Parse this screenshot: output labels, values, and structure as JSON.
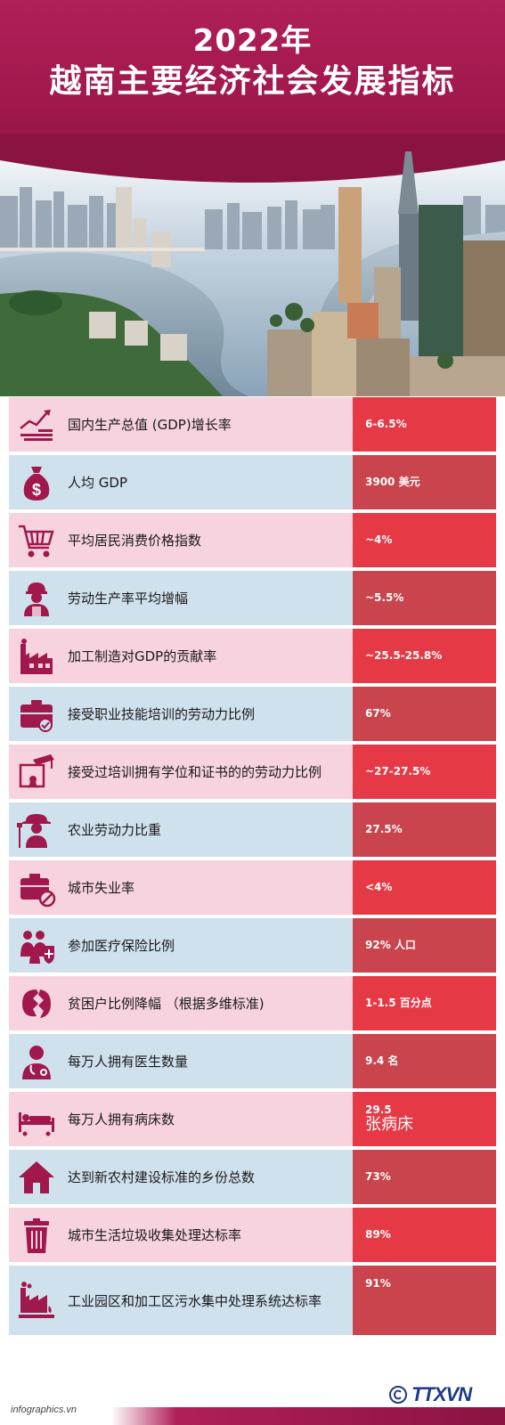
{
  "header": {
    "year_title": "2022年",
    "subtitle": "越南主要经济社会发展指标"
  },
  "rows": [
    {
      "label": "国内生产总值 (GDP)增长率",
      "value": "6-6.5%",
      "value_sub": "",
      "icon": "growth-chart-icon"
    },
    {
      "label": "人均 GDP",
      "value": "3900 美元",
      "value_sub": "",
      "icon": "money-bag-icon"
    },
    {
      "label": "平均居民消费价格指数",
      "value": "~4%",
      "value_sub": "",
      "icon": "shopping-cart-icon"
    },
    {
      "label": "劳动生产率平均增幅",
      "value": "~5.5%",
      "value_sub": "",
      "icon": "worker-icon"
    },
    {
      "label": "加工制造对GDP的贡献率",
      "value": "~25.5-25.8%",
      "value_sub": "",
      "icon": "factory-icon"
    },
    {
      "label": "接受职业技能培训的劳动力比例",
      "value": "67%",
      "value_sub": "",
      "icon": "toolbox-icon"
    },
    {
      "label": "接受过培训拥有学位和证书的的劳动力比例",
      "value": "~27-27.5%",
      "value_sub": "",
      "icon": "certificate-icon"
    },
    {
      "label": "农业劳动力比重",
      "value": "27.5%",
      "value_sub": "",
      "icon": "farmer-icon"
    },
    {
      "label": "城市失业率",
      "value": "<4%",
      "value_sub": "",
      "icon": "unemployment-icon"
    },
    {
      "label": "参加医疗保险比例",
      "value": "92% 人口",
      "value_sub": "",
      "icon": "health-insurance-icon"
    },
    {
      "label": "贫困户比例降幅 （根据多维标准)",
      "value": "1-1.5 百分点",
      "value_sub": "",
      "icon": "poverty-icon"
    },
    {
      "label": "每万人拥有医生数量",
      "value": "9.4 名",
      "value_sub": "",
      "icon": "doctor-icon"
    },
    {
      "label": "每万人拥有病床数",
      "value": "29.5",
      "value_sub": "张病床",
      "icon": "hospital-bed-icon"
    },
    {
      "label": "达到新农村建设标准的乡份总数",
      "value": "73%",
      "value_sub": "",
      "icon": "rural-house-icon"
    },
    {
      "label": "城市生活垃圾收集处理达标率",
      "value": "89%",
      "value_sub": "",
      "icon": "trash-bin-icon"
    },
    {
      "label": "工业园区和加工区污水集中处理系统达标率",
      "value": "91%",
      "value_sub": "",
      "icon": "wastewater-factory-icon"
    }
  ],
  "footer": {
    "source": "infographics.vn",
    "logo_text": "TTXVN"
  },
  "colors": {
    "header": "#a0184c",
    "pink_row": "#f7d3df",
    "blue_row": "#d0e1ee",
    "value_red": "#e63946",
    "value_dark_red": "#c9444c",
    "icon": "#a0184c"
  }
}
